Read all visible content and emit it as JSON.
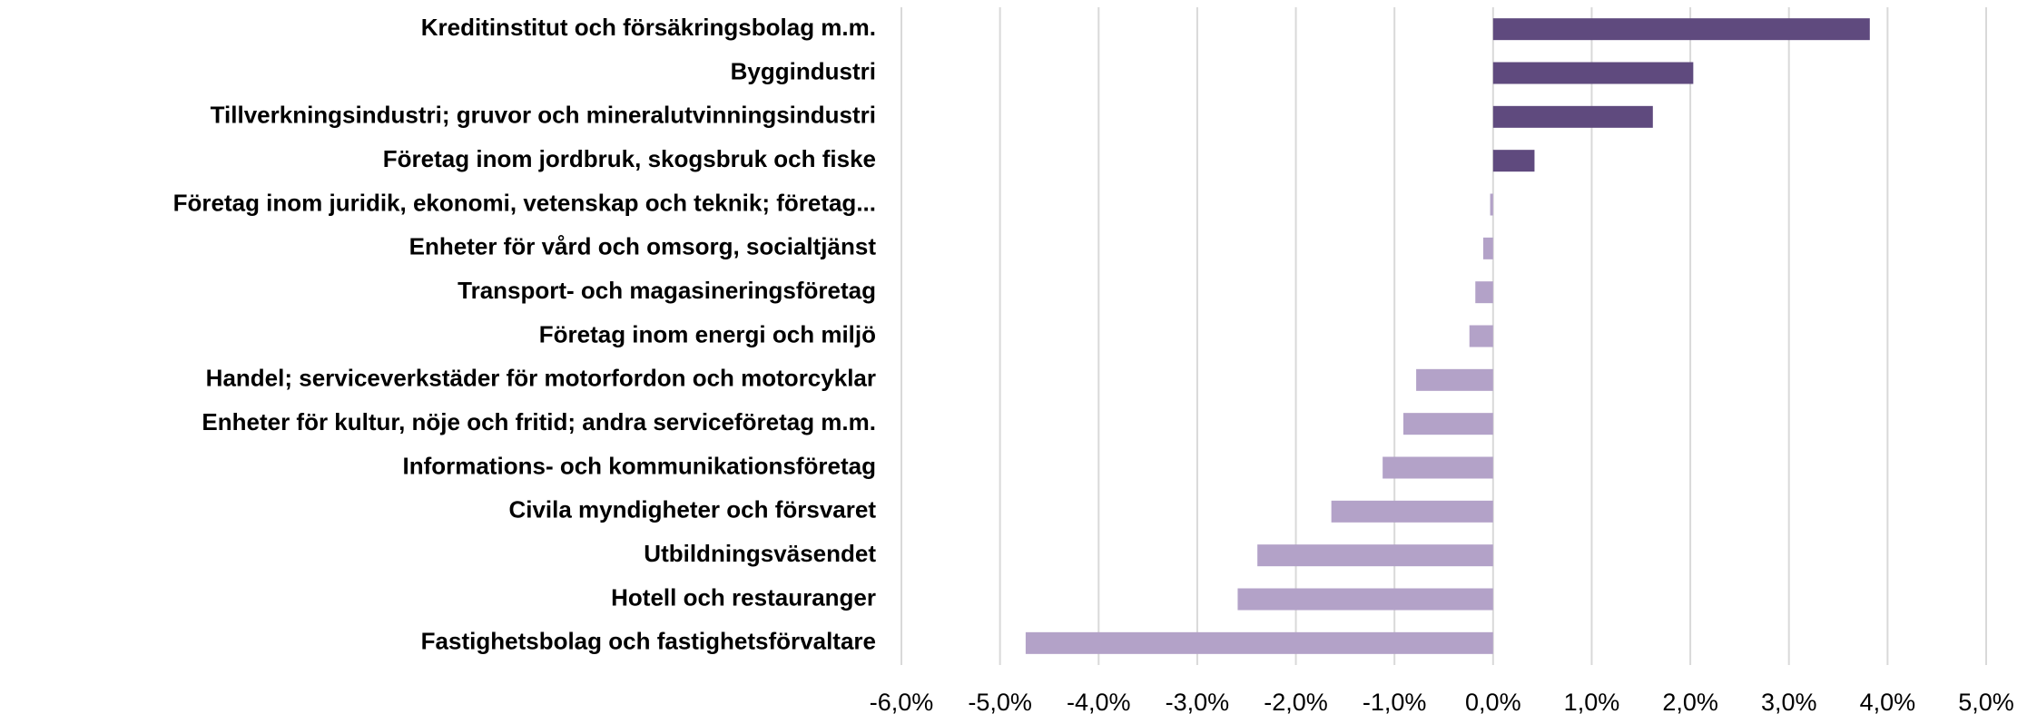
{
  "chart_data": {
    "type": "barh",
    "categories": [
      "Kreditinstitut och försäkringsbolag m.m.",
      "Byggindustri",
      "Tillverkningsindustri; gruvor och mineralutvinningsindustri",
      "Företag inom jordbruk, skogsbruk och fiske",
      "Företag inom juridik, ekonomi, vetenskap och teknik; företag...",
      "Enheter för vård och omsorg, socialtjänst",
      "Transport- och magasineringsföretag",
      "Företag inom energi och miljö",
      "Handel; serviceverkstäder för motorfordon och motorcyklar",
      "Enheter för kultur, nöje och fritid; andra serviceföretag m.m.",
      "Informations- och kommunikationsföretag",
      "Civila myndigheter och försvaret",
      "Utbildningsväsendet",
      "Hotell och restauranger",
      "Fastighetsbolag och fastighetsförvaltare"
    ],
    "values": [
      3.82,
      2.03,
      1.62,
      0.42,
      -0.03,
      -0.1,
      -0.18,
      -0.24,
      -0.78,
      -0.91,
      -1.12,
      -1.64,
      -2.39,
      -2.59,
      -4.74
    ],
    "positive_color": "#5f4a7e",
    "negative_color": "#b3a2c8",
    "xlim": [
      -6,
      5
    ],
    "xticks": [
      {
        "value": -6,
        "label": "-6,0%"
      },
      {
        "value": -5,
        "label": "-5,0%"
      },
      {
        "value": -4,
        "label": "-4,0%"
      },
      {
        "value": -3,
        "label": "-3,0%"
      },
      {
        "value": -2,
        "label": "-2,0%"
      },
      {
        "value": -1,
        "label": "-1,0%"
      },
      {
        "value": 0,
        "label": "0,0%"
      },
      {
        "value": 1,
        "label": "1,0%"
      },
      {
        "value": 2,
        "label": "2,0%"
      },
      {
        "value": 3,
        "label": "3,0%"
      },
      {
        "value": 4,
        "label": "4,0%"
      },
      {
        "value": 5,
        "label": "5,0%"
      }
    ],
    "grid": true
  }
}
